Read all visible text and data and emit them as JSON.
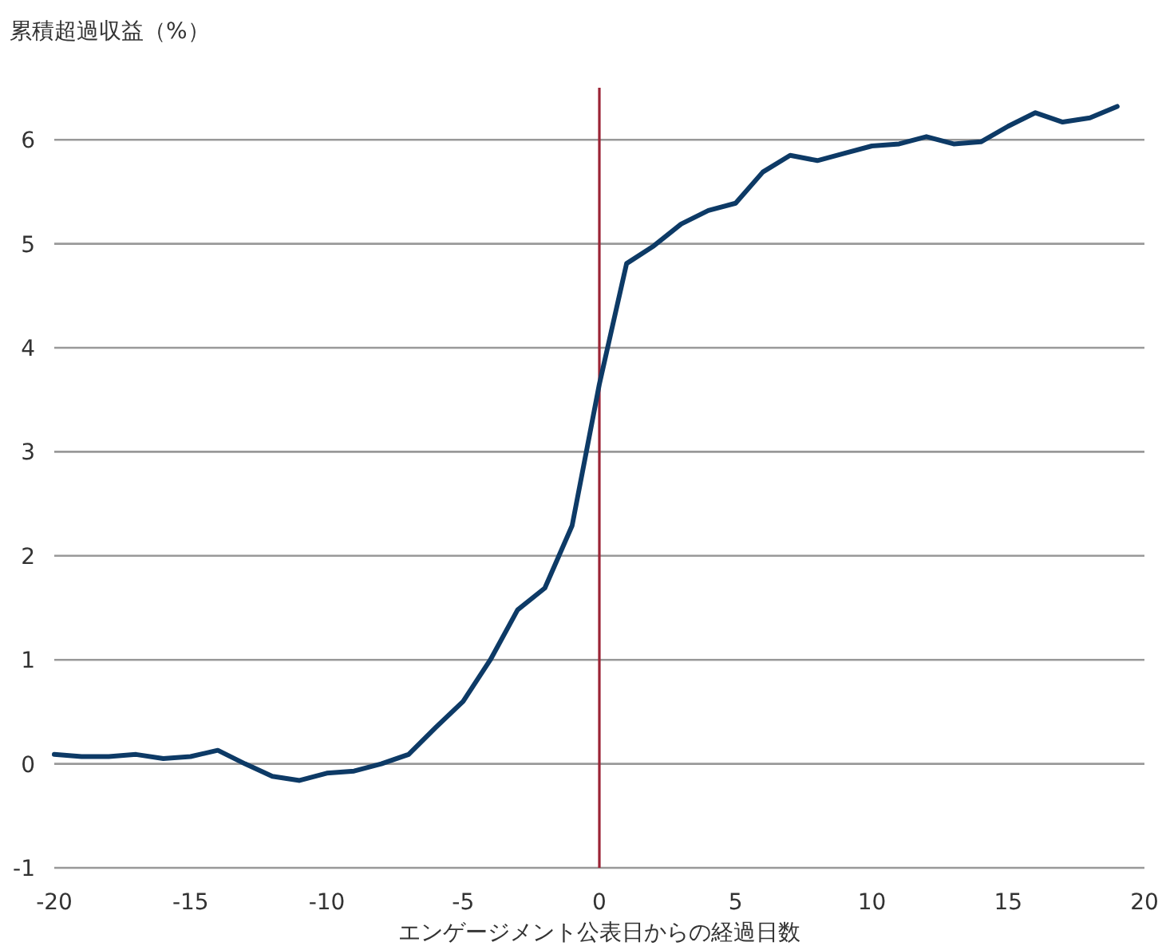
{
  "chart_data": {
    "type": "line",
    "ylabel": "累積超過収益（%）",
    "xlabel": "エンゲージメント公表日からの経過日数",
    "x": [
      -20,
      -19,
      -18,
      -17,
      -16,
      -15,
      -14,
      -13,
      -12,
      -11,
      -10,
      -9,
      -8,
      -7,
      -6,
      -5,
      -4,
      -3,
      -2,
      -1,
      0,
      1,
      2,
      3,
      4,
      5,
      6,
      7,
      8,
      9,
      10,
      11,
      12,
      13,
      14,
      15,
      16,
      17,
      18,
      19
    ],
    "series": [
      {
        "color": "#0d3a66",
        "values": [
          0.09,
          0.07,
          0.07,
          0.09,
          0.05,
          0.07,
          0.13,
          0.0,
          -0.12,
          -0.16,
          -0.09,
          -0.07,
          0.0,
          0.09,
          0.35,
          0.6,
          1.0,
          1.48,
          1.69,
          2.29,
          3.65,
          4.81,
          4.98,
          5.19,
          5.32,
          5.39,
          5.69,
          5.85,
          5.8,
          5.87,
          5.94,
          5.96,
          6.03,
          5.96,
          5.98,
          6.13,
          6.26,
          6.17,
          6.21,
          6.32
        ]
      }
    ],
    "xlim": [
      -20,
      20
    ],
    "xticks": [
      -20,
      -15,
      -10,
      -5,
      0,
      5,
      10,
      15,
      20
    ],
    "ylim": [
      -1,
      6.5
    ],
    "yticks": [
      -1,
      0,
      1,
      2,
      3,
      4,
      5,
      6
    ],
    "grid": "y",
    "ref_lines": [
      {
        "axis": "x",
        "value": 0,
        "color": "#9b2335"
      }
    ],
    "line_style": "solid"
  }
}
